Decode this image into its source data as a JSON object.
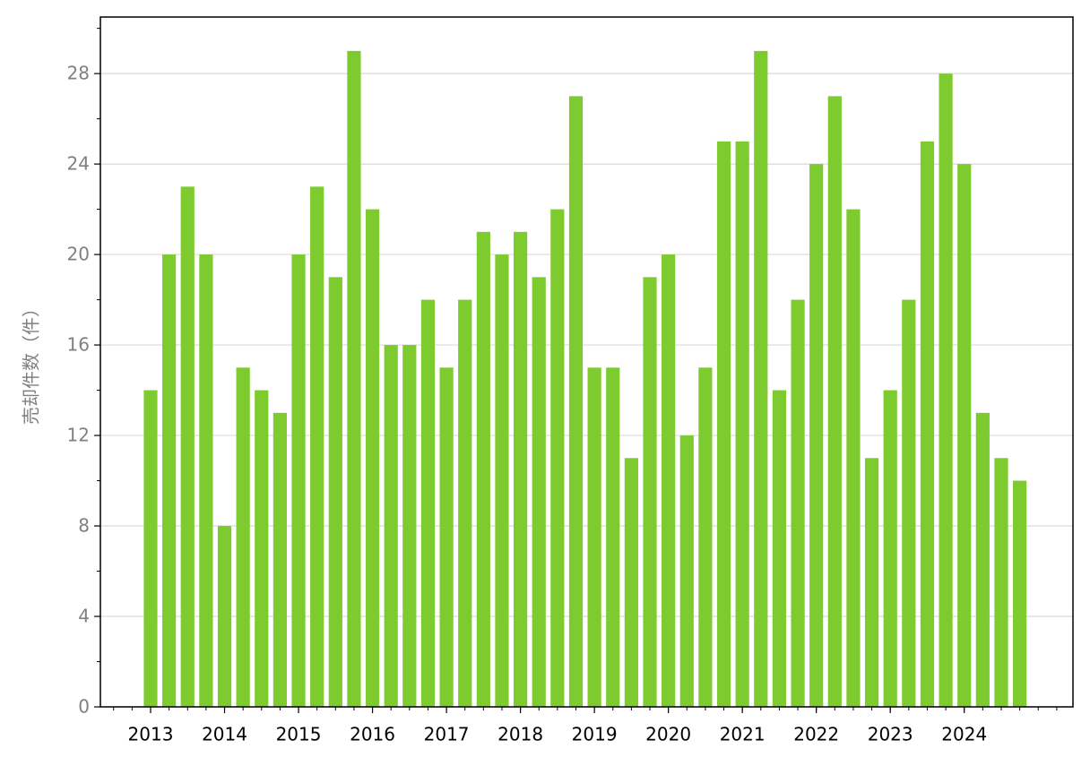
{
  "chart_data": {
    "type": "bar",
    "y_label": "売却件数（件）",
    "categories": [
      "2013",
      null,
      null,
      null,
      "2014",
      null,
      null,
      null,
      "2015",
      null,
      null,
      null,
      "2016",
      null,
      null,
      null,
      "2017",
      null,
      null,
      null,
      "2018",
      null,
      null,
      null,
      "2019",
      null,
      null,
      null,
      "2020",
      null,
      null,
      null,
      "2021",
      null,
      null,
      null,
      "2022",
      null,
      null,
      null,
      "2023",
      null,
      null,
      null,
      "2024",
      null,
      null,
      null
    ],
    "values": [
      14,
      20,
      23,
      20,
      8,
      15,
      14,
      13,
      20,
      23,
      19,
      29,
      22,
      16,
      16,
      18,
      15,
      18,
      21,
      20,
      21,
      19,
      22,
      27,
      15,
      15,
      11,
      19,
      20,
      12,
      15,
      25,
      25,
      29,
      14,
      18,
      24,
      27,
      22,
      11,
      14,
      18,
      25,
      28,
      24,
      13,
      11,
      10
    ],
    "color": "#7ecb30",
    "ylim": [
      0,
      30.5
    ],
    "yticks": [
      0,
      4,
      8,
      12,
      16,
      20,
      24,
      28
    ],
    "grid": true
  }
}
